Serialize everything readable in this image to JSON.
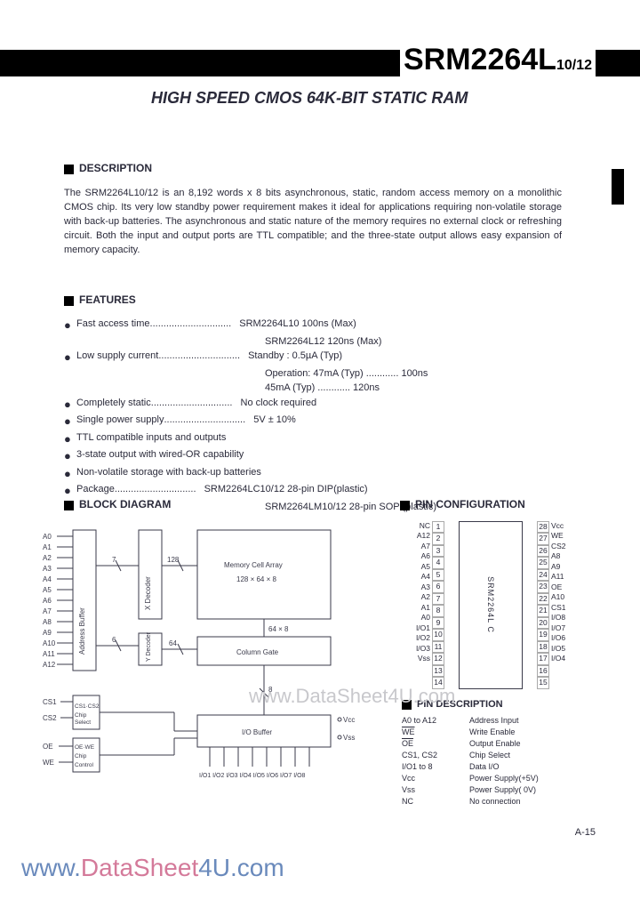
{
  "header": {
    "partNumber": "SRM2264L",
    "partSuffix": "10/12",
    "subtitle": "HIGH SPEED CMOS 64K-BIT STATIC RAM"
  },
  "description": {
    "title": "DESCRIPTION",
    "body": "The SRM2264L10/12 is an 8,192 words x 8 bits asynchronous, static, random access memory on a monolithic CMOS chip. Its very low standby power requirement makes it ideal for applications requiring non-volatile storage with back-up batteries. The asynchronous and static nature of the memory requires no external clock or refreshing circuit. Both the input and output ports are TTL compatible; and the three-state output allows easy expansion of memory capacity."
  },
  "features": {
    "title": "FEATURES",
    "items": [
      {
        "label": "Fast access time",
        "dots": true,
        "value": "SRM2264L10 100ns (Max)"
      },
      {
        "label": "",
        "dots": false,
        "value": "SRM2264L12 120ns (Max)"
      },
      {
        "label": "Low supply current",
        "dots": true,
        "value": "Standby : 0.5µA (Typ)"
      },
      {
        "label": "",
        "dots": false,
        "value": "Operation:   47mA (Typ) ............ 100ns"
      },
      {
        "label": "",
        "dots": false,
        "value": "                       45mA (Typ) ............ 120ns"
      },
      {
        "label": "Completely static",
        "dots": true,
        "value": "No clock required"
      },
      {
        "label": "Single power supply",
        "dots": true,
        "value": "5V ± 10%"
      },
      {
        "label": "TTL compatible inputs and outputs",
        "dots": false,
        "value": ""
      },
      {
        "label": "3-state output with wired-OR capability",
        "dots": false,
        "value": ""
      },
      {
        "label": "Non-volatile storage with back-up batteries",
        "dots": false,
        "value": ""
      },
      {
        "label": "Package",
        "dots": true,
        "value": "SRM2264LC10/12 28-pin DIP(plastic)"
      },
      {
        "label": "",
        "dots": false,
        "value": "SRM2264LM10/12 28-pin SOP (plastic)"
      }
    ]
  },
  "blockDiagram": {
    "title": "BLOCK DIAGRAM",
    "blocks": {
      "addressBuffer": "Address Buffer",
      "xDecoder": "X Decoder",
      "yDecoder": "Y Decoder",
      "memoryArray": "Memory Cell Array",
      "memoryArraySize": "128 × 64 × 8",
      "columnGate": "Column Gate",
      "ioBuffer": "I/O Buffer",
      "chipSelect": "CS1 · CS2\nChip Select",
      "oeWeControl": "OE · WE\nChip Control"
    },
    "labels": {
      "a0": "A0",
      "a1": "A1",
      "a2": "A2",
      "a3": "A3",
      "a4": "A4",
      "a5": "A5",
      "a6": "A6",
      "a7": "A7",
      "a8": "A8",
      "a9": "A9",
      "a10": "A10",
      "a11": "A11",
      "a12": "A12",
      "seven": "7",
      "onetwentyeight": "128",
      "six": "6",
      "sixtyfour": "64",
      "sixtyfourx8": "64 × 8",
      "eight": "8",
      "cs1": "CS1",
      "cs2": "CS2",
      "oe": "OE",
      "we": "WE",
      "io": "I/O1 I/O2 I/O3 I/O4 I/O5 I/O6 I/O7 I/O8",
      "vcc": "Vcc",
      "vss": "Vss"
    }
  },
  "pinConfig": {
    "title": "PIN CONFIGURATION",
    "chipName": "SRM2264L C",
    "left": [
      {
        "n": "1",
        "l": "NC"
      },
      {
        "n": "2",
        "l": "A12"
      },
      {
        "n": "3",
        "l": "A7"
      },
      {
        "n": "4",
        "l": "A6"
      },
      {
        "n": "5",
        "l": "A5"
      },
      {
        "n": "6",
        "l": "A4"
      },
      {
        "n": "7",
        "l": "A3"
      },
      {
        "n": "8",
        "l": "A2"
      },
      {
        "n": "9",
        "l": "A1"
      },
      {
        "n": "10",
        "l": "A0"
      },
      {
        "n": "11",
        "l": "I/O1"
      },
      {
        "n": "12",
        "l": "I/O2"
      },
      {
        "n": "13",
        "l": "I/O3"
      },
      {
        "n": "14",
        "l": "Vss"
      }
    ],
    "right": [
      {
        "n": "28",
        "l": "Vcc"
      },
      {
        "n": "27",
        "l": "WE"
      },
      {
        "n": "26",
        "l": "CS2"
      },
      {
        "n": "25",
        "l": "A8"
      },
      {
        "n": "24",
        "l": "A9"
      },
      {
        "n": "23",
        "l": "A11"
      },
      {
        "n": "22",
        "l": "OE"
      },
      {
        "n": "21",
        "l": "A10"
      },
      {
        "n": "20",
        "l": "CS1"
      },
      {
        "n": "19",
        "l": "I/O8"
      },
      {
        "n": "18",
        "l": "I/O7"
      },
      {
        "n": "17",
        "l": "I/O6"
      },
      {
        "n": "16",
        "l": "I/O5"
      },
      {
        "n": "15",
        "l": "I/O4"
      }
    ]
  },
  "pinDescription": {
    "title": "PIN DESCRIPTION",
    "rows": [
      {
        "name": "A0 to A12",
        "val": "Address Input"
      },
      {
        "name": "WE",
        "val": "Write Enable",
        "ol": true
      },
      {
        "name": "OE",
        "val": "Output Enable",
        "ol": true
      },
      {
        "name": "CS1, CS2",
        "val": "Chip Select"
      },
      {
        "name": "I/O1 to 8",
        "val": "Data I/O"
      },
      {
        "name": "Vcc",
        "val": "Power Supply(+5V)"
      },
      {
        "name": "Vss",
        "val": "Power Supply( 0V)"
      },
      {
        "name": "NC",
        "val": "No connection"
      }
    ]
  },
  "watermark": {
    "w1": "www.DataSheet4U.com",
    "w2a": "www.",
    "w2b": "DataSheet",
    "w2c": "4U",
    "w2d": ".com"
  },
  "pageNum": "A-15"
}
